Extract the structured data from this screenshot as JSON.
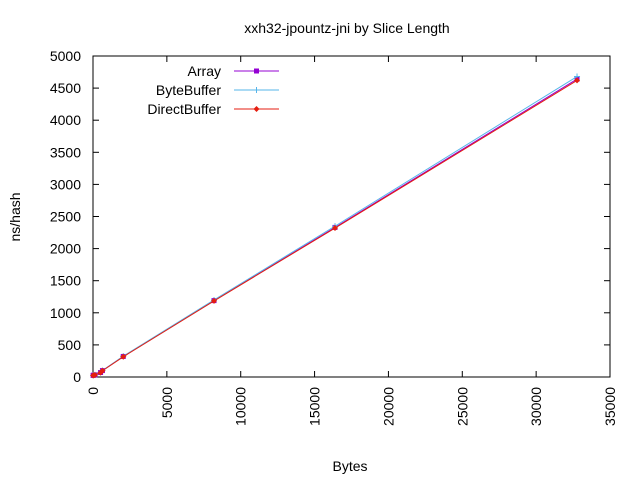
{
  "chart_data": {
    "type": "line",
    "title": "xxh32-jpountz-jni by Slice Length",
    "xlabel": "Bytes",
    "ylabel": "ns/hash",
    "xlim": [
      0,
      35000
    ],
    "ylim": [
      0,
      5000
    ],
    "xticks": [
      0,
      5000,
      10000,
      15000,
      20000,
      25000,
      30000,
      35000
    ],
    "yticks": [
      0,
      500,
      1000,
      1500,
      2000,
      2500,
      3000,
      3500,
      4000,
      4500,
      5000
    ],
    "grid": false,
    "legend_position": "top-left",
    "series": [
      {
        "name": "Array",
        "color": "#9400d3",
        "marker": "square",
        "points": [
          [
            8,
            25
          ],
          [
            32,
            28
          ],
          [
            128,
            33
          ],
          [
            512,
            70
          ],
          [
            640,
            100
          ],
          [
            2048,
            320
          ],
          [
            8192,
            1190
          ],
          [
            16384,
            2330
          ],
          [
            32768,
            4640
          ]
        ]
      },
      {
        "name": "ByteBuffer",
        "color": "#56b4e9",
        "marker": "plus",
        "points": [
          [
            8,
            26
          ],
          [
            32,
            29
          ],
          [
            128,
            34
          ],
          [
            512,
            72
          ],
          [
            640,
            102
          ],
          [
            2048,
            325
          ],
          [
            8192,
            1200
          ],
          [
            16384,
            2350
          ],
          [
            32768,
            4680
          ]
        ]
      },
      {
        "name": "DirectBuffer",
        "color": "#e51e10",
        "marker": "diamond",
        "points": [
          [
            8,
            24
          ],
          [
            32,
            27
          ],
          [
            128,
            32
          ],
          [
            512,
            68
          ],
          [
            640,
            98
          ],
          [
            2048,
            315
          ],
          [
            8192,
            1185
          ],
          [
            16384,
            2320
          ],
          [
            32768,
            4620
          ]
        ]
      }
    ]
  }
}
